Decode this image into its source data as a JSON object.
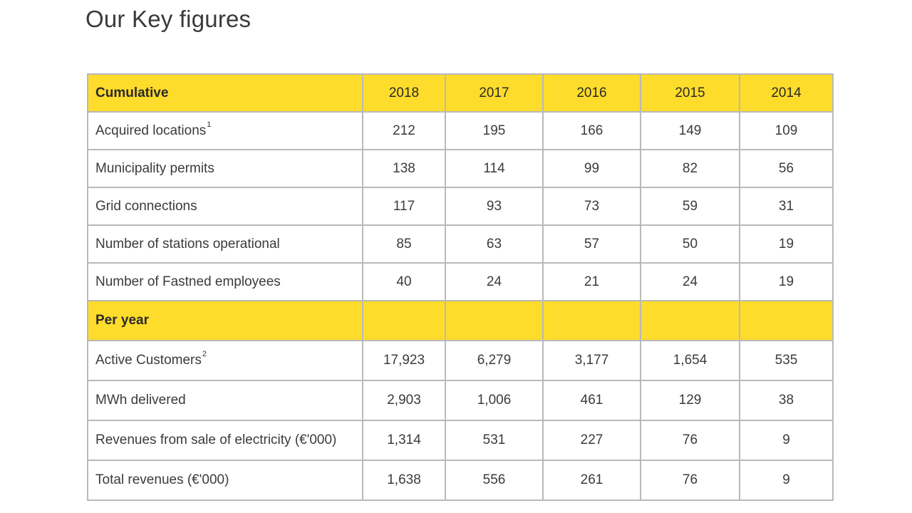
{
  "page": {
    "title": "Our Key figures"
  },
  "table": {
    "header": {
      "label": "Cumulative",
      "years": [
        "2018",
        "2017",
        "2016",
        "2015",
        "2014"
      ]
    },
    "cumulative_rows": [
      {
        "label": "Acquired locations",
        "footnote": "1",
        "values": [
          "212",
          "195",
          "166",
          "149",
          "109"
        ]
      },
      {
        "label": "Municipality permits",
        "footnote": "",
        "values": [
          "138",
          "114",
          "99",
          "82",
          "56"
        ]
      },
      {
        "label": "Grid connections",
        "footnote": "",
        "values": [
          "117",
          "93",
          "73",
          "59",
          "31"
        ]
      },
      {
        "label": "Number of stations operational",
        "footnote": "",
        "values": [
          "85",
          "63",
          "57",
          "50",
          "19"
        ]
      },
      {
        "label": "Number of Fastned employees",
        "footnote": "",
        "values": [
          "40",
          "24",
          "21",
          "24",
          "19"
        ]
      }
    ],
    "per_year_section": {
      "label": "Per year"
    },
    "per_year_rows": [
      {
        "label": "Active Customers",
        "footnote": "2",
        "values": [
          "17,923",
          "6,279",
          "3,177",
          "1,654",
          "535"
        ]
      },
      {
        "label": "MWh delivered",
        "footnote": "",
        "values": [
          "2,903",
          "1,006",
          "461",
          "129",
          "38"
        ]
      },
      {
        "label": "Revenues from sale of electricity (€'000)",
        "footnote": "",
        "values": [
          "1,314",
          "531",
          "227",
          "76",
          "9"
        ]
      },
      {
        "label": "Total revenues (€'000)",
        "footnote": "",
        "values": [
          "1,638",
          "556",
          "261",
          "76",
          "9"
        ]
      }
    ],
    "colors": {
      "section_fill": "#fddc2b",
      "border": "#b9b9b9",
      "text": "#3b3b3b"
    }
  }
}
